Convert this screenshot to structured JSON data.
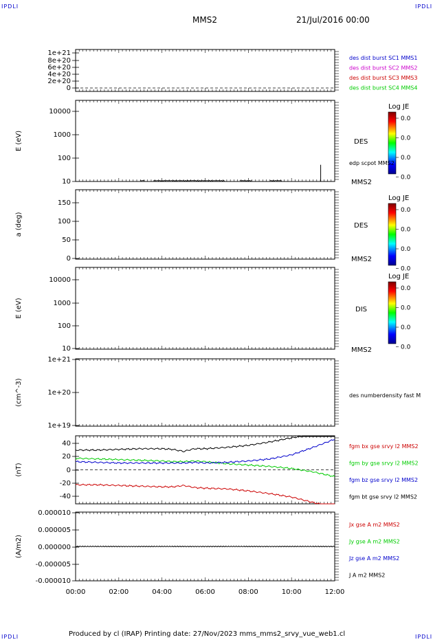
{
  "header": {
    "logo_left": "IPDLI",
    "logo_right": "IPDLI",
    "logo_bottom_left": "IPDLI",
    "logo_bottom_right": "IPDLI",
    "spacecraft": "MMS2",
    "date": "21/Jul/2016 00:00"
  },
  "footer": {
    "text": "Produced by cl (IRAP)   Printing date: 27/Nov/2023   mms_mms2_srvy_vue_web1.cl"
  },
  "colors": {
    "mms1": "#0000cc",
    "mms2": "#cc00cc",
    "mms3": "#cc0000",
    "mms4": "#00cc00",
    "bx": "#cc0000",
    "by": "#00cc00",
    "bz": "#0000cc",
    "bt": "#000000"
  },
  "chart_data": [
    {
      "type": "line",
      "panel": "des_dist_burst",
      "ylabel": "",
      "yticks": [
        "1e+21",
        "8e+20",
        "6e+20",
        "4e+20",
        "2e+20",
        "0"
      ],
      "ylim": [
        0,
        1e+21
      ],
      "series": [],
      "labels": [
        {
          "text": "des dist burst SC1 MMS1",
          "color": "#0000cc"
        },
        {
          "text": "des dist burst SC2 MMS2",
          "color": "#cc00cc"
        },
        {
          "text": "des dist burst SC3 MMS3",
          "color": "#cc0000"
        },
        {
          "text": "des dist burst SC4 MMS4",
          "color": "#00cc00"
        }
      ]
    },
    {
      "type": "heatmap",
      "panel": "des_energy",
      "ylabel": "E (eV)",
      "yscale": "log",
      "yticks": [
        "10000",
        "1000",
        "100",
        "10"
      ],
      "ylim": [
        10,
        15000
      ],
      "instrument": "DES",
      "spacecraft": "MMS2",
      "overlay_label": "edp scpot MMS2",
      "colorbar": {
        "title": "Log JE",
        "ticks": [
          "0.0",
          "0.0",
          "0.0",
          "0.0"
        ]
      },
      "scpot_noise_hours": [
        3.0,
        3.2,
        3.6,
        6.9,
        7.6,
        8.2,
        9.0,
        9.6
      ],
      "scpot_spike": {
        "x_hour": 11.35,
        "y_ev": 45
      }
    },
    {
      "type": "heatmap",
      "panel": "des_pitch",
      "ylabel": "a (deg)",
      "yticks": [
        "150",
        "100",
        "50",
        "0"
      ],
      "ylim": [
        0,
        180
      ],
      "instrument": "DES",
      "spacecraft": "MMS2",
      "colorbar": {
        "title": "Log JE",
        "ticks": [
          "0.0",
          "0.0",
          "0.0",
          "0.0"
        ]
      }
    },
    {
      "type": "heatmap",
      "panel": "dis_energy",
      "ylabel": "E (eV)",
      "yscale": "log",
      "yticks": [
        "10000",
        "1000",
        "100",
        "10"
      ],
      "ylim": [
        10,
        15000
      ],
      "instrument": "DIS",
      "spacecraft": "MMS2",
      "colorbar": {
        "title": "Log JE",
        "ticks": [
          "0.0",
          "0.0",
          "0.0",
          "0.0"
        ]
      }
    },
    {
      "type": "line",
      "panel": "density",
      "ylabel": "(cm^-3)",
      "yscale": "log",
      "yticks": [
        "1e+21",
        "1e+20",
        "1e+19"
      ],
      "ylim": [
        1e+19,
        1e+21
      ],
      "labels": [
        {
          "text": "des numberdensity fast M",
          "color": "#000000"
        }
      ]
    },
    {
      "type": "line",
      "panel": "fgm",
      "ylabel": "(nT)",
      "yticks": [
        "40",
        "20",
        "0",
        "-20",
        "-40"
      ],
      "ylim": [
        -50,
        50
      ],
      "x": [
        0,
        1,
        2,
        3,
        4,
        4.5,
        5,
        5.5,
        6,
        7,
        8,
        9,
        10,
        11,
        12
      ],
      "series": [
        {
          "name": "fgm bx gse srvy l2 MMS2",
          "color": "#cc0000",
          "values": [
            -22,
            -22,
            -23,
            -24,
            -25,
            -25,
            -23,
            -26,
            -27,
            -28,
            -31,
            -35,
            -40,
            -48,
            -55
          ]
        },
        {
          "name": "fgm by gse srvy l2 MMS2",
          "color": "#00cc00",
          "values": [
            17,
            16,
            15,
            14,
            13,
            12,
            12,
            13,
            12,
            9,
            7,
            5,
            2,
            -3,
            -10
          ]
        },
        {
          "name": "fgm bz gse srvy l2 MMS2",
          "color": "#0000cc",
          "values": [
            12,
            11,
            10,
            10,
            10,
            10,
            10,
            11,
            10,
            11,
            13,
            16,
            22,
            33,
            45
          ]
        },
        {
          "name": "fgm bt gse srvy l2 MMS2",
          "color": "#000000",
          "values": [
            29,
            29,
            30,
            31,
            31,
            30,
            27,
            31,
            31,
            33,
            36,
            41,
            47,
            52,
            55
          ]
        }
      ]
    },
    {
      "type": "line",
      "panel": "current",
      "ylabel": "(A/m2)",
      "yticks": [
        "0.000010",
        "0.000005",
        "0.000000",
        "-0.000005",
        "-0.000010"
      ],
      "ylim": [
        -1e-05,
        1e-05
      ],
      "series": [
        {
          "name": "Jx gse A m2 MMS2",
          "color": "#cc0000"
        },
        {
          "name": "Jy gse A m2 MMS2",
          "color": "#00cc00"
        },
        {
          "name": "Jz gse A m2 MMS2",
          "color": "#0000cc"
        },
        {
          "name": "J A m2 MMS2",
          "color": "#000000",
          "values": [
            0,
            0,
            0,
            0,
            0,
            0,
            0,
            0,
            0,
            0,
            0,
            0,
            0,
            0,
            0
          ]
        }
      ]
    }
  ],
  "x_axis": {
    "ticks": [
      "00:00",
      "02:00",
      "04:00",
      "06:00",
      "08:00",
      "10:00",
      "12:00"
    ],
    "range_hours": [
      0,
      12
    ]
  }
}
